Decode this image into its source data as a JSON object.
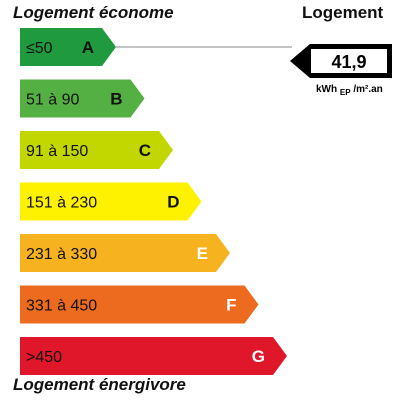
{
  "header": {
    "left_title": "Logement économe",
    "right_title": "Logement"
  },
  "footer": {
    "title": "Logement énergivore"
  },
  "chart_data": {
    "type": "bar",
    "categories": [
      "A",
      "B",
      "C",
      "D",
      "E",
      "F",
      "G"
    ],
    "range_labels": [
      "≤50",
      "51 à 90",
      "91 à 150",
      "151 à 230",
      "231 à 330",
      "331 à 450",
      ">450"
    ],
    "colors": [
      "#1f9a3e",
      "#55b043",
      "#c2d600",
      "#fff200",
      "#f7b21f",
      "#ec6b1f",
      "#e0162b"
    ],
    "value": "41,9",
    "unit_main": "kWh",
    "unit_sub": "EP",
    "unit_tail": "/m².an",
    "current_class_index": 0
  }
}
